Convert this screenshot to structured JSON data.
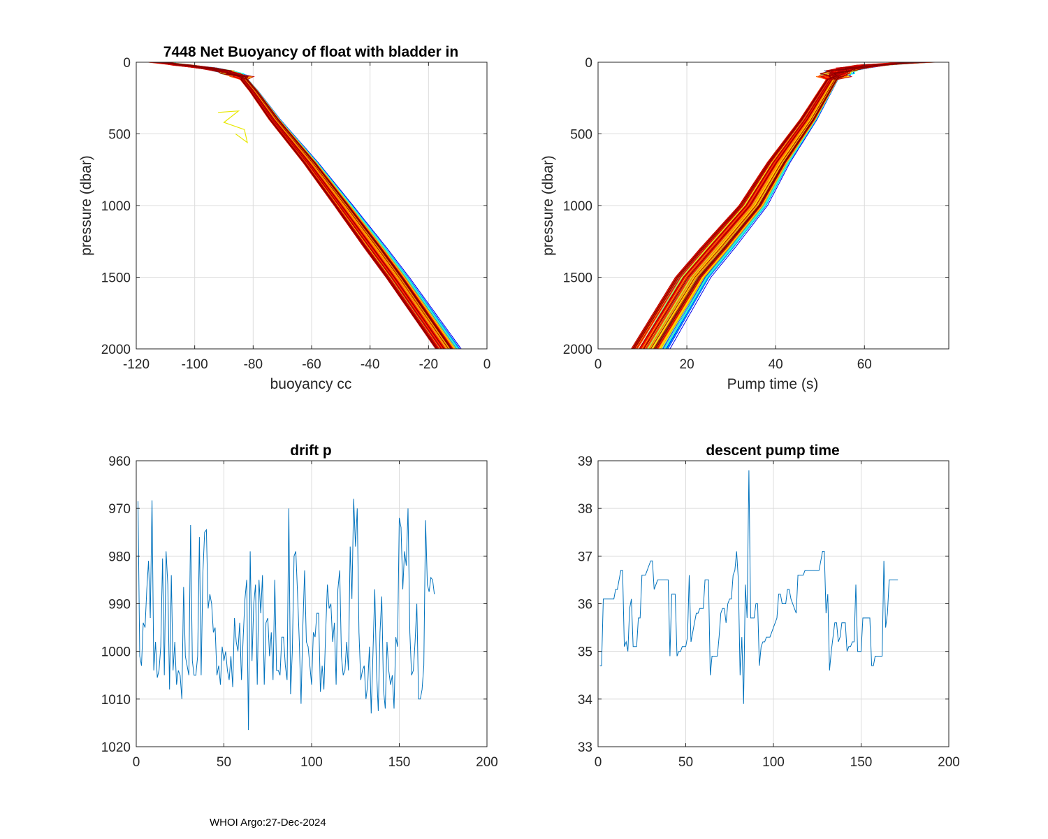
{
  "footer": "WHOI Argo:27-Dec-2024",
  "chart_data": [
    {
      "id": "buoyancy",
      "type": "line",
      "title": "7448 Net Buoyancy of float with bladder in",
      "xlabel": "buoyancy cc",
      "ylabel": "pressure (dbar)",
      "xlim": [
        -120,
        0
      ],
      "ylim": [
        0,
        2000
      ],
      "y_reversed": true,
      "grid": true,
      "xticks": [
        -120,
        -100,
        -80,
        -60,
        -40,
        -20,
        0
      ],
      "yticks": [
        0,
        500,
        1000,
        1500,
        2000
      ],
      "profile_count": 170,
      "colormap": "jet (profile index)",
      "typical_profile": {
        "pressure": [
          0,
          50,
          100,
          200,
          400,
          700,
          1000,
          1500,
          2000
        ],
        "buoyancy": [
          -112,
          -92,
          -84,
          -80,
          -73,
          -61,
          -50,
          -32,
          -15
        ]
      },
      "anomaly": {
        "pressure": [
          350,
          340,
          420,
          470,
          560,
          500
        ],
        "buoyancy": [
          -92,
          -85,
          -90,
          -83,
          -82,
          -86
        ],
        "color": "#e8e800"
      }
    },
    {
      "id": "pumptime",
      "type": "line",
      "title": "",
      "xlabel": "Pump time (s)",
      "ylabel": "pressure (dbar)",
      "xlim": [
        0,
        79
      ],
      "ylim": [
        0,
        2000
      ],
      "y_reversed": true,
      "grid": true,
      "xticks": [
        0,
        20,
        40,
        60
      ],
      "yticks": [
        0,
        500,
        1000,
        1500,
        2000
      ],
      "profile_count": 170,
      "colormap": "jet (profile index)",
      "typical_profile": {
        "pressure": [
          0,
          20,
          50,
          100,
          200,
          400,
          700,
          1000,
          1500,
          2000
        ],
        "pump_time": [
          72,
          62,
          55,
          53,
          51,
          47,
          40,
          34,
          20,
          10
        ]
      }
    },
    {
      "id": "drift",
      "type": "line",
      "title": "drift p",
      "xlabel": "",
      "ylabel": "",
      "xlim": [
        0,
        200
      ],
      "ylim": [
        960,
        1020
      ],
      "y_reversed": true,
      "grid": true,
      "xticks": [
        0,
        50,
        100,
        150,
        200
      ],
      "yticks": [
        960,
        970,
        980,
        990,
        1000,
        1010,
        1020
      ],
      "color": "#0072BD",
      "series": [
        {
          "name": "drift p",
          "values": [
            968.5,
            1001,
            1003,
            994,
            995,
            987,
            981,
            993,
            968.3,
            1004,
            998,
            1005.5,
            1004,
            999,
            980.5,
            1005,
            979,
            986,
            1008,
            984,
            1004,
            998,
            1007,
            1004,
            1005,
            1010,
            986.5,
            1001,
            1003,
            1005,
            973.5,
            1002,
            1005,
            1005,
            1001,
            976,
            1005,
            983.5,
            975,
            974.5,
            991,
            988,
            990,
            996,
            995,
            1005,
            1003,
            1007,
            999,
            1002,
            1000,
            1004,
            1006,
            1001,
            1007.5,
            993,
            998,
            1000,
            994,
            1006,
            997,
            989,
            985,
            1016.5,
            979,
            1002,
            990,
            986,
            1007,
            985,
            992,
            984,
            1007,
            994,
            993,
            1001,
            996,
            1006,
            985,
            1004,
            1004,
            1005,
            997,
            997,
            1003,
            1006,
            970,
            1009,
            1000,
            980,
            979,
            988,
            998,
            1011,
            995,
            983,
            998,
            999,
            1003,
            1007,
            996,
            997,
            992,
            992,
            1008.5,
            1003,
            1008,
            996,
            986,
            991,
            990,
            998,
            994,
            1007,
            987,
            983,
            1001,
            1005,
            1004,
            998,
            1004,
            978,
            989,
            968,
            978,
            970,
            996,
            1006,
            1004,
            1003,
            1010,
            1007,
            999,
            1013,
            1000,
            987,
            1004,
            1012.5,
            996,
            988.5,
            1008,
            1012,
            998,
            1004,
            1007,
            1005,
            1012,
            997,
            999,
            972,
            974,
            987,
            979,
            982,
            970,
            996,
            1005,
            1004,
            998,
            990,
            1010,
            1010,
            1008,
            1003,
            972.5,
            986,
            987.5,
            984.5,
            985,
            988
          ]
        }
      ]
    },
    {
      "id": "descent",
      "type": "line",
      "title": "descent pump time",
      "xlabel": "",
      "ylabel": "",
      "xlim": [
        0,
        200
      ],
      "ylim": [
        33,
        39
      ],
      "grid": true,
      "xticks": [
        0,
        50,
        100,
        150,
        200
      ],
      "yticks": [
        33,
        34,
        35,
        36,
        37,
        38,
        39
      ],
      "color": "#0072BD",
      "series": [
        {
          "name": "descent pump time",
          "values": [
            34.7,
            34.7,
            36.1,
            36.1,
            36.1,
            36.1,
            36.1,
            36.1,
            36.1,
            36.3,
            36.3,
            36.5,
            36.7,
            36.7,
            35.1,
            35.2,
            35.0,
            35.9,
            36.1,
            35.1,
            35.1,
            35.1,
            35.7,
            35.7,
            36.6,
            36.6,
            36.6,
            36.7,
            36.8,
            36.9,
            36.9,
            36.3,
            36.4,
            36.5,
            36.5,
            36.5,
            36.5,
            36.5,
            36.5,
            36.5,
            34.9,
            36.2,
            36.2,
            36.2,
            34.9,
            35.0,
            35.0,
            35.1,
            35.1,
            35.1,
            35.3,
            36.6,
            35.2,
            35.4,
            35.6,
            35.8,
            35.8,
            35.9,
            35.9,
            35.9,
            36.5,
            36.5,
            36.5,
            34.5,
            34.9,
            34.9,
            34.9,
            34.9,
            35.3,
            35.8,
            35.9,
            35.9,
            35.6,
            36.0,
            36.1,
            36.1,
            36.6,
            36.7,
            37.1,
            36.5,
            34.5,
            35.3,
            33.9,
            36.4,
            35.7,
            38.8,
            35.7,
            35.7,
            35.7,
            36.0,
            36.0,
            34.7,
            35.1,
            35.2,
            35.2,
            35.3,
            35.3,
            35.3,
            35.4,
            35.5,
            35.6,
            35.7,
            36.2,
            36.2,
            36.0,
            36.0,
            36.0,
            36.3,
            36.3,
            36.1,
            36.0,
            35.9,
            35.8,
            36.6,
            36.6,
            36.6,
            36.6,
            36.7,
            36.7,
            36.7,
            36.7,
            36.7,
            36.7,
            36.7,
            36.7,
            36.7,
            36.9,
            37.1,
            37.1,
            35.8,
            36.2,
            34.6,
            35.0,
            35.3,
            35.6,
            35.6,
            35.2,
            35.3,
            35.6,
            35.6,
            35.6,
            35.0,
            35.1,
            35.1,
            35.2,
            35.2,
            36.4,
            35.0,
            35.0,
            35.0,
            35.7,
            35.7,
            35.7,
            35.7,
            35.7,
            34.7,
            34.7,
            34.9,
            34.9,
            34.9,
            34.9,
            34.9,
            36.9,
            35.5,
            35.8,
            36.5,
            36.5,
            36.5,
            36.5,
            36.5,
            36.5
          ]
        }
      ]
    }
  ]
}
